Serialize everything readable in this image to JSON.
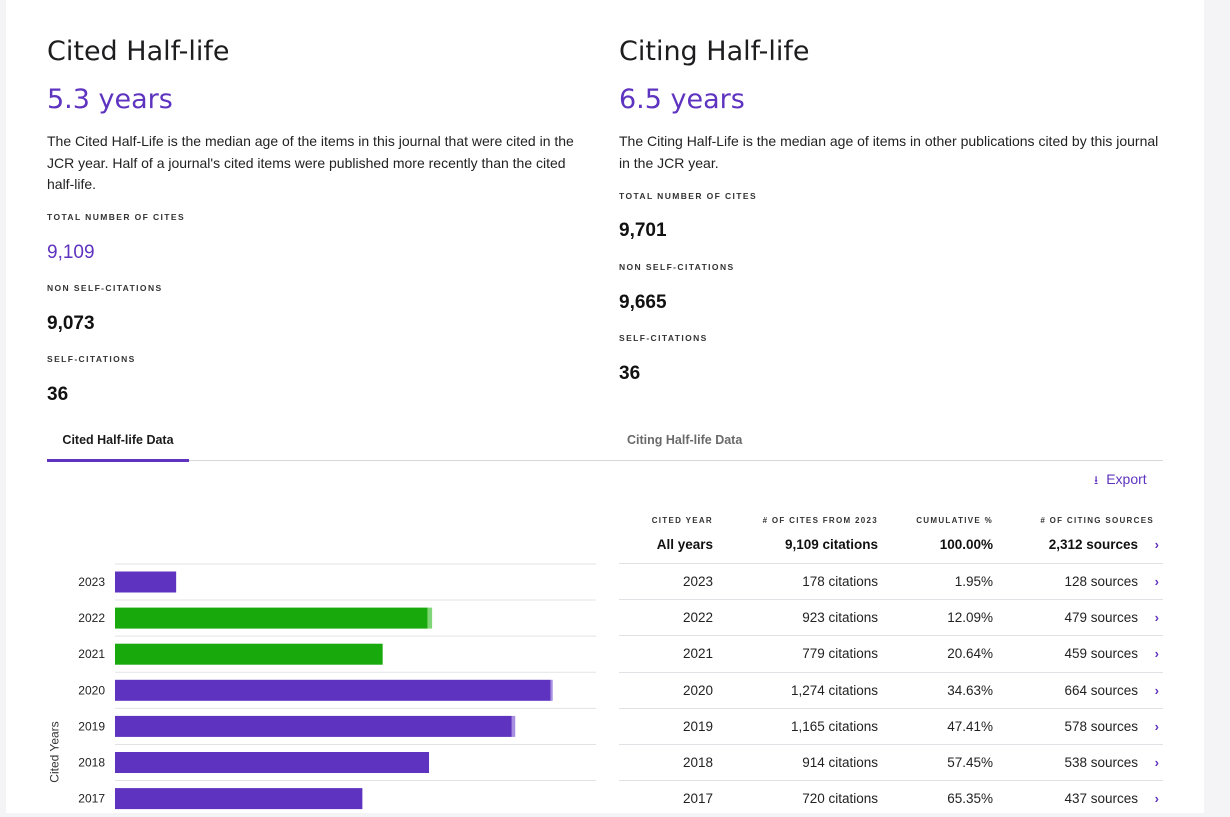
{
  "cited": {
    "title": "Cited Half-life",
    "value": "5.3 years",
    "description": "The Cited Half-Life is the median age of the items in this journal that were cited in the JCR year. Half of a journal's cited items were published more recently than the cited half-life.",
    "total_label": "TOTAL NUMBER OF CITES",
    "total_value": "9,109",
    "nonself_label": "NON SELF-CITATIONS",
    "nonself_value": "9,073",
    "self_label": "SELF-CITATIONS",
    "self_value": "36"
  },
  "citing": {
    "title": "Citing Half-life",
    "value": "6.5 years",
    "description": "The Citing Half-Life is the median age of items in other publications cited by this journal in the JCR year.",
    "total_label": "TOTAL NUMBER OF CITES",
    "total_value": "9,701",
    "nonself_label": "NON SELF-CITATIONS",
    "nonself_value": "9,665",
    "self_label": "SELF-CITATIONS",
    "self_value": "36"
  },
  "tabs": {
    "cited": "Cited Half-life Data",
    "citing": "Citing Half-life Data"
  },
  "export_label": "Export",
  "icons": {
    "export": "download-icon",
    "row_link": "chevron-right-icon"
  },
  "colors": {
    "accent": "#5e33bf",
    "green": "#18a90d",
    "green_light": "#7fd676",
    "purple_light": "#a78ee0"
  },
  "table": {
    "headers": [
      "CITED YEAR",
      "# OF CITES FROM 2023",
      "CUMULATIVE %",
      "# OF CITING SOURCES"
    ],
    "total": {
      "year": "All years",
      "cites": "9,109 citations",
      "cumulative": "100.00%",
      "sources": "2,312 sources"
    },
    "rows": [
      {
        "year": "2023",
        "cites": "178 citations",
        "cumulative": "1.95%",
        "sources": "128 sources"
      },
      {
        "year": "2022",
        "cites": "923 citations",
        "cumulative": "12.09%",
        "sources": "479 sources"
      },
      {
        "year": "2021",
        "cites": "779 citations",
        "cumulative": "20.64%",
        "sources": "459 sources"
      },
      {
        "year": "2020",
        "cites": "1,274 citations",
        "cumulative": "34.63%",
        "sources": "664 sources"
      },
      {
        "year": "2019",
        "cites": "1,165 citations",
        "cumulative": "47.41%",
        "sources": "578 sources"
      },
      {
        "year": "2018",
        "cites": "914 citations",
        "cumulative": "57.45%",
        "sources": "538 sources"
      },
      {
        "year": "2017",
        "cites": "720 citations",
        "cumulative": "65.35%",
        "sources": "437 sources"
      }
    ]
  },
  "chart_data": {
    "type": "bar",
    "orientation": "horizontal",
    "ylabel": "Cited Years",
    "categories": [
      "2023",
      "2022",
      "2021",
      "2020",
      "2019",
      "2018",
      "2017"
    ],
    "values": [
      178,
      923,
      779,
      1274,
      1165,
      914,
      720
    ],
    "self_citations": [
      0,
      13,
      0,
      6,
      10,
      0,
      0
    ],
    "bar_colors": [
      "#5e33bf",
      "#18a90d",
      "#18a90d",
      "#5e33bf",
      "#5e33bf",
      "#5e33bf",
      "#5e33bf"
    ],
    "xlim": [
      0,
      1400
    ],
    "grid": true
  }
}
